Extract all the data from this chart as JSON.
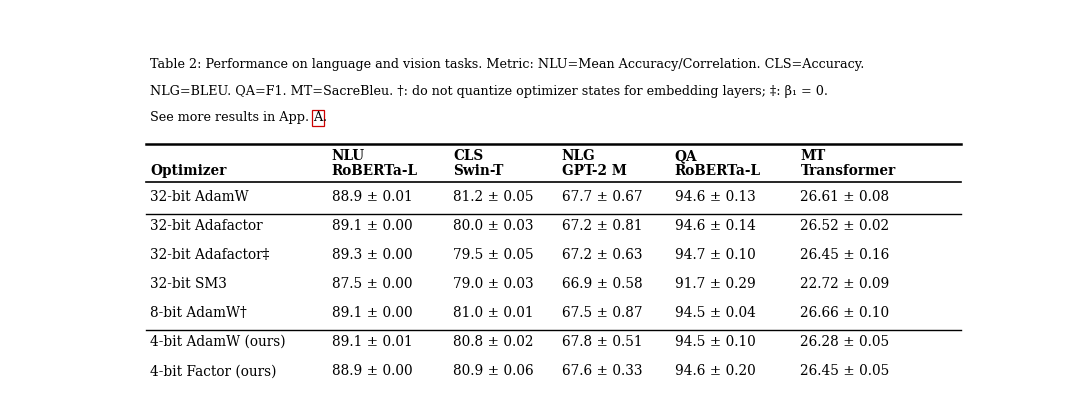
{
  "caption_lines": [
    "Table 2: Performance on language and vision tasks. Metric: NLU=Mean Accuracy/Correlation. CLS=Accuracy.",
    "NLG=BLEU. QA=F1. MT=SacreBleu. †: do not quantize optimizer states for embedding layers; ‡: β₁ = 0.",
    "See more results in App. A."
  ],
  "col_headers_line1": [
    "",
    "NLU",
    "CLS",
    "NLG",
    "QA",
    "MT"
  ],
  "col_headers_line2": [
    "Optimizer",
    "RoBERTa-L",
    "Swin-T",
    "GPT-2 M",
    "RoBERTa-L",
    "Transformer"
  ],
  "rows": [
    {
      "group": "baseline",
      "optimizer": "32-bit AdamW",
      "nlu": "88.9 ± 0.01",
      "cls": "81.2 ± 0.05",
      "nlg": "67.7 ± 0.67",
      "qa": "94.6 ± 0.13",
      "mt": "26.61 ± 0.08"
    },
    {
      "group": "32bit",
      "optimizer": "32-bit Adafactor",
      "nlu": "89.1 ± 0.00",
      "cls": "80.0 ± 0.03",
      "nlg": "67.2 ± 0.81",
      "qa": "94.6 ± 0.14",
      "mt": "26.52 ± 0.02"
    },
    {
      "group": "32bit",
      "optimizer": "32-bit Adafactor‡",
      "nlu": "89.3 ± 0.00",
      "cls": "79.5 ± 0.05",
      "nlg": "67.2 ± 0.63",
      "qa": "94.7 ± 0.10",
      "mt": "26.45 ± 0.16"
    },
    {
      "group": "32bit",
      "optimizer": "32-bit SM3",
      "nlu": "87.5 ± 0.00",
      "cls": "79.0 ± 0.03",
      "nlg": "66.9 ± 0.58",
      "qa": "91.7 ± 0.29",
      "mt": "22.72 ± 0.09"
    },
    {
      "group": "32bit",
      "optimizer": "8-bit AdamW†",
      "nlu": "89.1 ± 0.00",
      "cls": "81.0 ± 0.01",
      "nlg": "67.5 ± 0.87",
      "qa": "94.5 ± 0.04",
      "mt": "26.66 ± 0.10"
    },
    {
      "group": "4bit",
      "optimizer": "4-bit AdamW (ours)",
      "nlu": "89.1 ± 0.01",
      "cls": "80.8 ± 0.02",
      "nlg": "67.8 ± 0.51",
      "qa": "94.5 ± 0.10",
      "mt": "26.28 ± 0.05"
    },
    {
      "group": "4bit",
      "optimizer": "4-bit Factor (ours)",
      "nlu": "88.9 ± 0.00",
      "cls": "80.9 ± 0.06",
      "nlg": "67.6 ± 0.33",
      "qa": "94.6 ± 0.20",
      "mt": "26.45 ± 0.05"
    }
  ],
  "bg_color": "#ffffff",
  "text_color": "#000000",
  "box_color": "#cc0000",
  "figsize": [
    10.8,
    4.19
  ],
  "dpi": 100
}
